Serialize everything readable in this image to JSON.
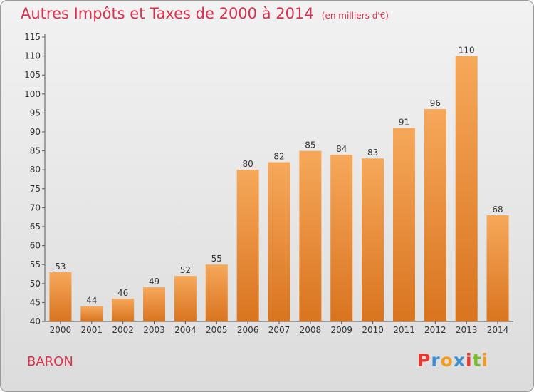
{
  "title": "Autres Impôts et Taxes de 2000 à 2014",
  "unit": "(en milliers d'€)",
  "commune": "BARON",
  "logo": "Proxiti",
  "colors": {
    "title": "#d7314d",
    "bar_top": "#f6a85a",
    "bar_bottom": "#d9741f",
    "axis_text": "#333333"
  },
  "chart_data": {
    "type": "bar",
    "categories": [
      "2000",
      "2001",
      "2002",
      "2003",
      "2004",
      "2005",
      "2006",
      "2007",
      "2008",
      "2009",
      "2010",
      "2011",
      "2012",
      "2013",
      "2014"
    ],
    "values": [
      53,
      44,
      46,
      49,
      52,
      55,
      80,
      82,
      85,
      84,
      83,
      91,
      96,
      110,
      68
    ],
    "ylim": [
      40,
      115
    ],
    "yticks": [
      40,
      45,
      50,
      55,
      60,
      65,
      70,
      75,
      80,
      85,
      90,
      95,
      100,
      105,
      110,
      115
    ],
    "grid": false,
    "legend": "none"
  }
}
